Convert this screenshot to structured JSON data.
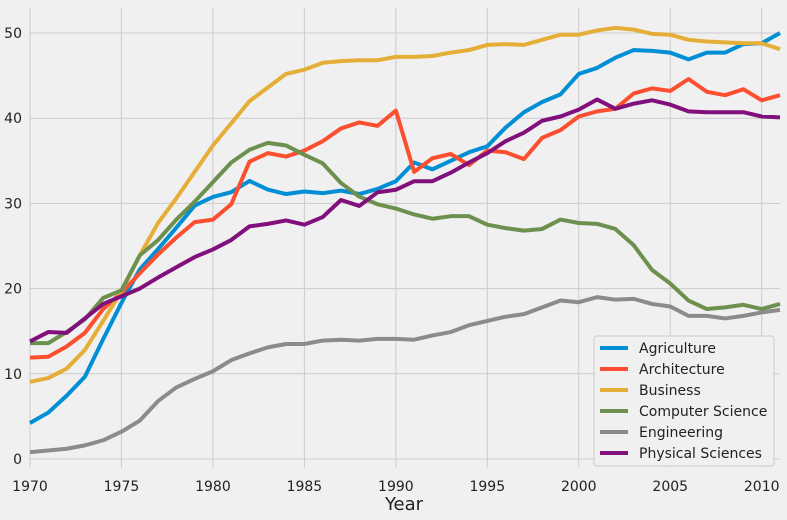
{
  "chart_data": {
    "type": "line",
    "title": "",
    "xlabel": "Year",
    "ylabel": "",
    "xlim": [
      1970,
      2011
    ],
    "ylim": [
      -1,
      53
    ],
    "xticks": [
      1970,
      1975,
      1980,
      1985,
      1990,
      1995,
      2000,
      2005,
      2010
    ],
    "yticks": [
      0,
      10,
      20,
      30,
      40,
      50
    ],
    "grid": true,
    "legend_position": "bottom-right",
    "x": [
      1970,
      1971,
      1972,
      1973,
      1974,
      1975,
      1976,
      1977,
      1978,
      1979,
      1980,
      1981,
      1982,
      1983,
      1984,
      1985,
      1986,
      1987,
      1988,
      1989,
      1990,
      1991,
      1992,
      1993,
      1994,
      1995,
      1996,
      1997,
      1998,
      1999,
      2000,
      2001,
      2002,
      2003,
      2004,
      2005,
      2006,
      2007,
      2008,
      2009,
      2010,
      2011
    ],
    "series": [
      {
        "name": "Agriculture",
        "color": "#008fd5",
        "values": [
          4.23,
          5.45,
          7.42,
          9.65,
          14.07,
          18.33,
          22.25,
          24.64,
          27.15,
          29.74,
          30.76,
          31.32,
          32.64,
          31.62,
          31.1,
          31.4,
          31.2,
          31.5,
          31.1,
          31.7,
          32.6,
          34.8,
          34.0,
          35.0,
          36.0,
          36.7,
          38.9,
          40.7,
          41.9,
          42.8,
          45.2,
          45.9,
          47.1,
          48.0,
          47.9,
          47.7,
          46.9,
          47.7,
          47.7,
          48.7,
          48.8,
          50.0
        ]
      },
      {
        "name": "Architecture",
        "color": "#fc4f30",
        "values": [
          11.9,
          12.0,
          13.2,
          14.8,
          17.6,
          19.5,
          21.8,
          24.0,
          26.0,
          27.8,
          28.1,
          29.9,
          34.9,
          35.9,
          35.5,
          36.2,
          37.3,
          38.8,
          39.5,
          39.1,
          40.9,
          33.7,
          35.3,
          35.8,
          34.5,
          36.2,
          36.0,
          35.2,
          37.7,
          38.6,
          40.2,
          40.8,
          41.1,
          42.9,
          43.5,
          43.2,
          44.6,
          43.1,
          42.7,
          43.4,
          42.1,
          42.7
        ]
      },
      {
        "name": "Business",
        "color": "#e5ae38",
        "values": [
          9.06,
          9.5,
          10.6,
          12.8,
          16.2,
          19.7,
          23.9,
          27.7,
          30.6,
          33.7,
          36.8,
          39.4,
          42.0,
          43.6,
          45.2,
          45.7,
          46.5,
          46.7,
          46.8,
          46.8,
          47.2,
          47.2,
          47.3,
          47.7,
          48.0,
          48.6,
          48.7,
          48.6,
          49.2,
          49.8,
          49.8,
          50.3,
          50.6,
          50.4,
          49.9,
          49.8,
          49.2,
          49.0,
          48.9,
          48.8,
          48.8,
          48.1
        ]
      },
      {
        "name": "Computer Science",
        "color": "#6d904f",
        "values": [
          13.6,
          13.6,
          14.9,
          16.4,
          18.9,
          19.8,
          23.9,
          25.7,
          28.1,
          30.2,
          32.5,
          34.8,
          36.3,
          37.1,
          36.8,
          35.7,
          34.7,
          32.4,
          30.8,
          29.9,
          29.4,
          28.7,
          28.2,
          28.5,
          28.5,
          27.5,
          27.1,
          26.8,
          27.0,
          28.1,
          27.7,
          27.6,
          27.0,
          25.1,
          22.2,
          20.6,
          18.6,
          17.6,
          17.8,
          18.1,
          17.6,
          18.2
        ]
      },
      {
        "name": "Engineering",
        "color": "#8b8b8b",
        "values": [
          0.8,
          1.0,
          1.2,
          1.6,
          2.2,
          3.2,
          4.5,
          6.8,
          8.4,
          9.4,
          10.3,
          11.6,
          12.4,
          13.1,
          13.5,
          13.5,
          13.9,
          14.0,
          13.9,
          14.1,
          14.1,
          14.0,
          14.5,
          14.9,
          15.7,
          16.2,
          16.7,
          17.0,
          17.8,
          18.6,
          18.4,
          19.0,
          18.7,
          18.8,
          18.2,
          17.9,
          16.8,
          16.8,
          16.5,
          16.8,
          17.2,
          17.5
        ]
      },
      {
        "name": "Physical Sciences",
        "color": "#810f7c",
        "values": [
          13.8,
          14.9,
          14.8,
          16.5,
          18.2,
          19.1,
          20.0,
          21.3,
          22.5,
          23.7,
          24.6,
          25.7,
          27.3,
          27.6,
          28.0,
          27.5,
          28.4,
          30.4,
          29.7,
          31.3,
          31.6,
          32.6,
          32.6,
          33.6,
          34.8,
          35.9,
          37.3,
          38.3,
          39.7,
          40.2,
          41.0,
          42.2,
          41.1,
          41.7,
          42.1,
          41.6,
          40.8,
          40.7,
          40.7,
          40.7,
          40.2,
          40.1
        ]
      }
    ]
  }
}
